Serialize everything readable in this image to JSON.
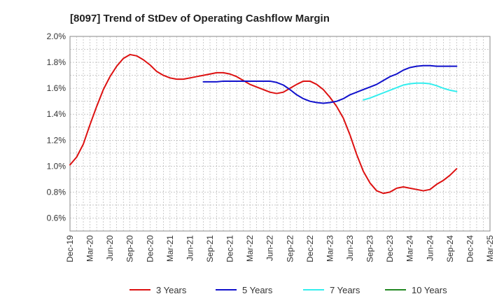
{
  "chart_data": {
    "type": "line",
    "title": "[8097]  Trend of StDev of Operating Cashflow Margin",
    "xlabel": "",
    "ylabel": "",
    "ylim": [
      0.5,
      2.0
    ],
    "y_ticks": [
      "0.6%",
      "0.8%",
      "1.0%",
      "1.2%",
      "1.4%",
      "1.6%",
      "1.8%",
      "2.0%"
    ],
    "y_tick_values": [
      0.6,
      0.8,
      1.0,
      1.2,
      1.4,
      1.6,
      1.8,
      2.0
    ],
    "x_ticks": [
      "Dec-19",
      "Mar-20",
      "Jun-20",
      "Sep-20",
      "Dec-20",
      "Mar-21",
      "Jun-21",
      "Sep-21",
      "Dec-21",
      "Mar-22",
      "Jun-22",
      "Sep-22",
      "Dec-22",
      "Mar-23",
      "Jun-23",
      "Sep-23",
      "Dec-23",
      "Mar-24",
      "Jun-24",
      "Sep-24",
      "Dec-24",
      "Mar-25"
    ],
    "grid": true,
    "legend_position": "bottom",
    "series": [
      {
        "name": "3 Years",
        "color": "#dd1111",
        "start_index": 0,
        "values": [
          1.01,
          1.07,
          1.17,
          1.32,
          1.46,
          1.59,
          1.69,
          1.77,
          1.83,
          1.86,
          1.85,
          1.82,
          1.78,
          1.73,
          1.7,
          1.68,
          1.67,
          1.67,
          1.68,
          1.69,
          1.7,
          1.71,
          1.72,
          1.72,
          1.71,
          1.69,
          1.66,
          1.63,
          1.61,
          1.59,
          1.57,
          1.56,
          1.57,
          1.6,
          1.63,
          1.655,
          1.655,
          1.63,
          1.59,
          1.53,
          1.46,
          1.37,
          1.24,
          1.09,
          0.96,
          0.87,
          0.81,
          0.79,
          0.8,
          0.83,
          0.84,
          0.83,
          0.82,
          0.81,
          0.82,
          0.86,
          0.89,
          0.93,
          0.98
        ]
      },
      {
        "name": "5 Years",
        "color": "#1111cc",
        "start_index": 20,
        "values": [
          1.65,
          1.65,
          1.65,
          1.655,
          1.655,
          1.655,
          1.655,
          1.655,
          1.655,
          1.655,
          1.655,
          1.645,
          1.625,
          1.59,
          1.55,
          1.52,
          1.5,
          1.49,
          1.485,
          1.49,
          1.5,
          1.52,
          1.55,
          1.57,
          1.59,
          1.61,
          1.63,
          1.66,
          1.69,
          1.71,
          1.74,
          1.76,
          1.77,
          1.775,
          1.775,
          1.77,
          1.77,
          1.77,
          1.77
        ]
      },
      {
        "name": "7 Years",
        "color": "#33eeee",
        "start_index": 44,
        "values": [
          1.51,
          1.525,
          1.545,
          1.565,
          1.585,
          1.605,
          1.625,
          1.635,
          1.64,
          1.64,
          1.635,
          1.62,
          1.6,
          1.585,
          1.575
        ]
      },
      {
        "name": "10 Years",
        "color": "#228822",
        "start_index": 0,
        "values": []
      }
    ]
  }
}
